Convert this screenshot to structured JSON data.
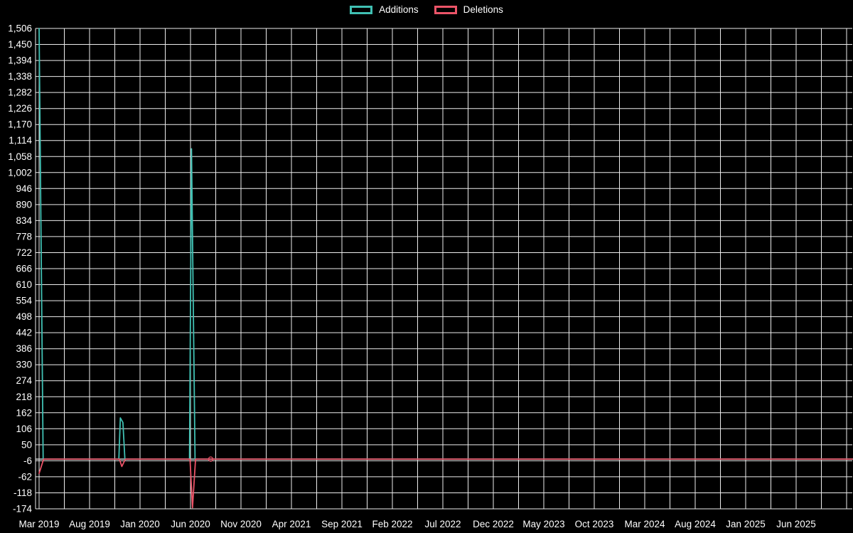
{
  "legend": {
    "items": [
      {
        "label": "Additions",
        "color_key": "additions"
      },
      {
        "label": "Deletions",
        "color_key": "deletions"
      }
    ]
  },
  "colors": {
    "additions": "#40c0b3",
    "deletions": "#ec5468",
    "grid": "#ededed",
    "zero_line": "#d2d2d2",
    "text": "#ffffff",
    "background": "#000000"
  },
  "chart_data": {
    "type": "line",
    "title": "",
    "legend_position": "top-center",
    "grid": true,
    "x_axis": {
      "unit": "months since Mar 2019",
      "range": [
        0,
        80.6
      ],
      "tick_labels": [
        "Mar 2019",
        "Aug 2019",
        "Jan 2020",
        "Jun 2020",
        "Nov 2020",
        "Apr 2021",
        "Sep 2021",
        "Feb 2022",
        "Jul 2022",
        "Dec 2022",
        "May 2023",
        "Oct 2023",
        "Mar 2024",
        "Aug 2024",
        "Jan 2025",
        "Jun 2025"
      ],
      "tick_months": [
        0,
        5,
        10,
        15,
        20,
        25,
        30,
        35,
        40,
        45,
        50,
        55,
        60,
        65,
        70,
        75
      ]
    },
    "y_axis": {
      "min": -174,
      "max": 1506,
      "step": 56,
      "tick_labels": [
        "1,506",
        "1,450",
        "1,394",
        "1,338",
        "1,282",
        "1,226",
        "1,170",
        "1,114",
        "1,058",
        "1,002",
        "946",
        "890",
        "834",
        "778",
        "722",
        "666",
        "610",
        "554",
        "498",
        "442",
        "386",
        "330",
        "274",
        "218",
        "162",
        "106",
        "50",
        "-6",
        "-62",
        "-118",
        "-174"
      ]
    },
    "series": [
      {
        "name": "Additions",
        "color_key": "additions",
        "points": [
          [
            0,
            1506
          ],
          [
            0.4,
            0
          ],
          [
            7.9,
            0
          ],
          [
            8.05,
            144
          ],
          [
            8.3,
            128
          ],
          [
            8.5,
            0
          ],
          [
            14.9,
            0
          ],
          [
            15.1,
            1085
          ],
          [
            15.45,
            0
          ],
          [
            80.6,
            0
          ]
        ]
      },
      {
        "name": "Deletions",
        "color_key": "deletions",
        "points": [
          [
            0,
            -50
          ],
          [
            0.45,
            0
          ],
          [
            7.95,
            0
          ],
          [
            8.2,
            -26
          ],
          [
            8.55,
            0
          ],
          [
            14.95,
            0
          ],
          [
            15.2,
            -170
          ],
          [
            15.5,
            0
          ],
          [
            80.6,
            0
          ]
        ]
      }
    ],
    "isolated_points": [
      {
        "series": "Deletions",
        "color_key": "deletions",
        "x": 17,
        "y": 0
      }
    ]
  }
}
